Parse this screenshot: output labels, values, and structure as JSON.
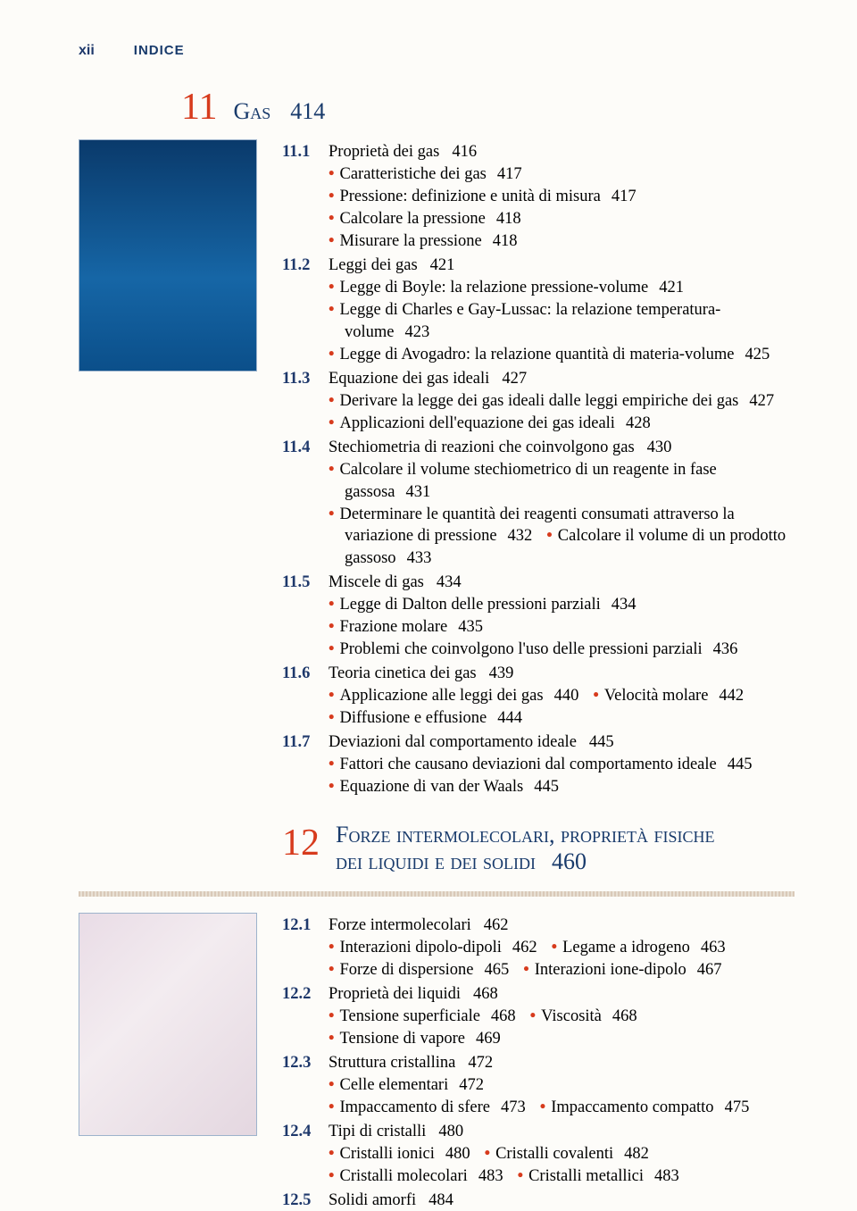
{
  "header": {
    "roman": "xii",
    "label": "INDICE"
  },
  "colors": {
    "accent": "#d73b1d",
    "navy": "#1e386b",
    "title": "#183a6b",
    "bg": "#fdfcf9"
  },
  "ch11": {
    "num": "11",
    "title": "Gas",
    "page": "414",
    "sections": [
      {
        "num": "11.1",
        "title": "Proprietà dei gas",
        "page": "416",
        "bullets": [
          [
            {
              "t": "Caratteristiche dei gas",
              "p": "417"
            }
          ],
          [
            {
              "t": "Pressione: definizione e unità di misura",
              "p": "417"
            }
          ],
          [
            {
              "t": "Calcolare la pressione",
              "p": "418"
            }
          ],
          [
            {
              "t": "Misurare la pressione",
              "p": "418"
            }
          ]
        ]
      },
      {
        "num": "11.2",
        "title": "Leggi dei gas",
        "page": "421",
        "bullets": [
          [
            {
              "t": "Legge di Boyle: la relazione pressione-volume",
              "p": "421"
            }
          ],
          [
            {
              "t": "Legge di Charles e Gay-Lussac: la relazione temperatura-volume",
              "p": "423"
            }
          ],
          [
            {
              "t": "Legge di Avogadro: la relazione quantità di materia-volume",
              "p": "425"
            }
          ]
        ]
      },
      {
        "num": "11.3",
        "title": "Equazione dei gas ideali",
        "page": "427",
        "bullets": [
          [
            {
              "t": "Derivare la legge dei gas ideali dalle leggi empiriche dei gas",
              "p": "427"
            }
          ],
          [
            {
              "t": "Applicazioni dell'equazione dei gas ideali",
              "p": "428"
            }
          ]
        ]
      },
      {
        "num": "11.4",
        "title": "Stechiometria di reazioni che coinvolgono gas",
        "page": "430",
        "bullets": [
          [
            {
              "t": "Calcolare il volume stechiometrico di un reagente in fase gassosa",
              "p": "431"
            }
          ],
          [
            {
              "t": "Determinare le quantità dei reagenti consumati attraverso la variazione di pressione",
              "p": "432"
            },
            {
              "t": "Calcolare il volume di un prodotto gassoso",
              "p": "433"
            }
          ]
        ]
      },
      {
        "num": "11.5",
        "title": "Miscele di gas",
        "page": "434",
        "bullets": [
          [
            {
              "t": "Legge di Dalton delle pressioni parziali",
              "p": "434"
            }
          ],
          [
            {
              "t": "Frazione molare",
              "p": "435"
            }
          ],
          [
            {
              "t": "Problemi che coinvolgono l'uso delle pressioni parziali",
              "p": "436"
            }
          ]
        ]
      },
      {
        "num": "11.6",
        "title": "Teoria cinetica dei gas",
        "page": "439",
        "bullets": [
          [
            {
              "t": "Applicazione alle leggi dei gas",
              "p": "440"
            },
            {
              "t": "Velocità molare",
              "p": "442"
            }
          ],
          [
            {
              "t": "Diffusione e effusione",
              "p": "444"
            }
          ]
        ]
      },
      {
        "num": "11.7",
        "title": "Deviazioni dal comportamento ideale",
        "page": "445",
        "bullets": [
          [
            {
              "t": "Fattori che causano deviazioni dal comportamento ideale",
              "p": "445"
            }
          ],
          [
            {
              "t": "Equazione di van der Waals",
              "p": "445"
            }
          ]
        ]
      }
    ]
  },
  "ch12": {
    "num": "12",
    "title_line1": "Forze intermolecolari, proprietà fisiche",
    "title_line2": "dei liquidi e dei solidi",
    "page": "460",
    "sections": [
      {
        "num": "12.1",
        "title": "Forze intermolecolari",
        "page": "462",
        "bullets": [
          [
            {
              "t": "Interazioni dipolo-dipoli",
              "p": "462"
            },
            {
              "t": "Legame a idrogeno",
              "p": "463"
            }
          ],
          [
            {
              "t": "Forze di dispersione",
              "p": "465"
            },
            {
              "t": "Interazioni ione-dipolo",
              "p": "467"
            }
          ]
        ]
      },
      {
        "num": "12.2",
        "title": "Proprietà dei liquidi",
        "page": "468",
        "bullets": [
          [
            {
              "t": "Tensione superficiale",
              "p": "468"
            },
            {
              "t": "Viscosità",
              "p": "468"
            }
          ],
          [
            {
              "t": "Tensione di vapore",
              "p": "469"
            }
          ]
        ]
      },
      {
        "num": "12.3",
        "title": "Struttura cristallina",
        "page": "472",
        "bullets": [
          [
            {
              "t": "Celle elementari",
              "p": "472"
            }
          ],
          [
            {
              "t": "Impaccamento di sfere",
              "p": "473"
            },
            {
              "t": "Impaccamento compatto",
              "p": "475"
            }
          ]
        ]
      },
      {
        "num": "12.4",
        "title": "Tipi di cristalli",
        "page": "480",
        "bullets": [
          [
            {
              "t": "Cristalli ionici",
              "p": "480"
            },
            {
              "t": "Cristalli covalenti",
              "p": "482"
            }
          ],
          [
            {
              "t": "Cristalli molecolari",
              "p": "483"
            },
            {
              "t": "Cristalli metallici",
              "p": "483"
            }
          ]
        ]
      },
      {
        "num": "12.5",
        "title": "Solidi amorfi",
        "page": "484",
        "bullets": []
      }
    ]
  }
}
